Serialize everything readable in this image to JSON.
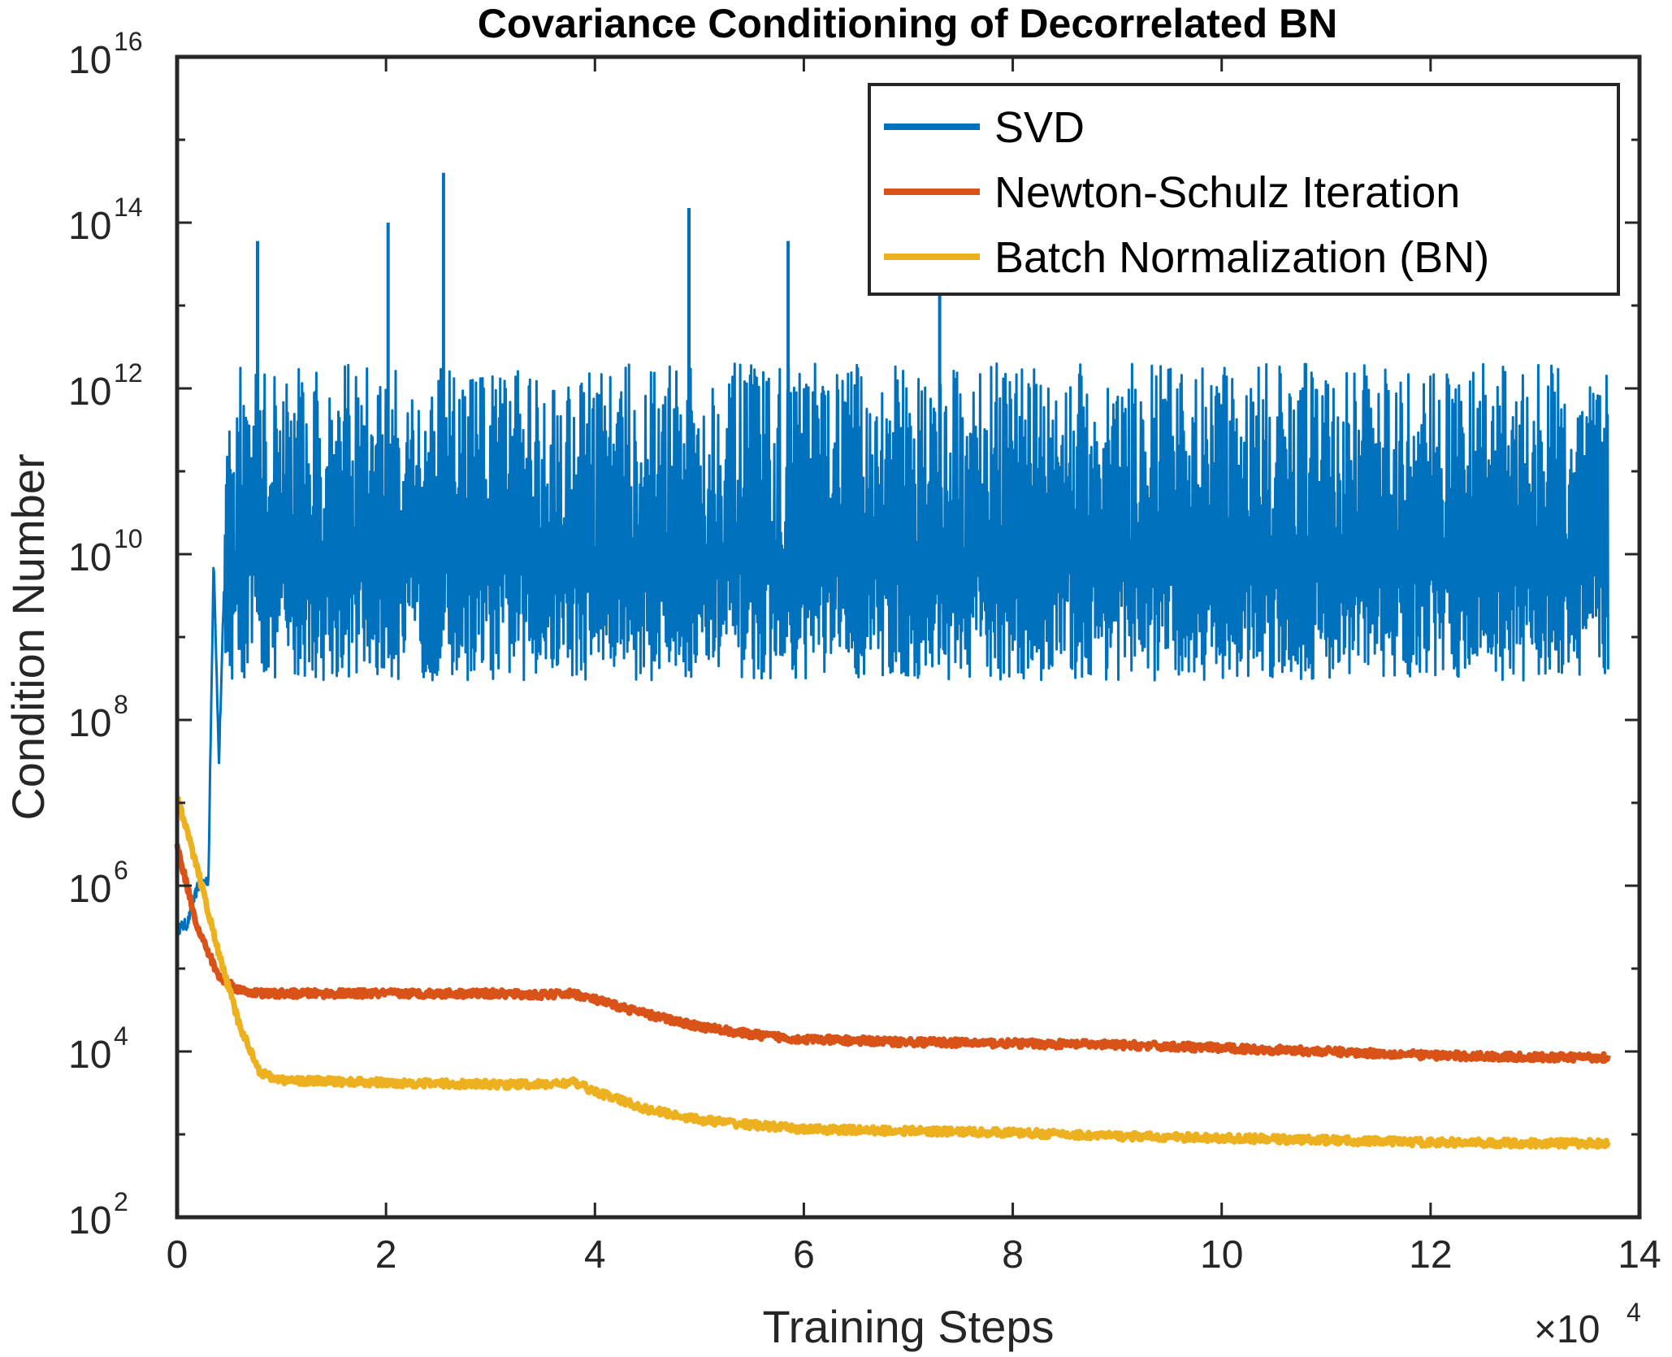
{
  "chart_data": {
    "type": "line",
    "title": "Covariance Conditioning of Decorrelated BN",
    "xlabel": "Training Steps",
    "ylabel": "Condition Number",
    "x_multiplier": "×10",
    "x_multiplier_exp": "4",
    "xlim": [
      0,
      14
    ],
    "ylim": [
      100,
      10000000000000000
    ],
    "yscale": "log",
    "xticks": [
      0,
      2,
      4,
      6,
      8,
      10,
      12,
      14
    ],
    "yticks": [
      {
        "base": "10",
        "exp": "2",
        "value": 100
      },
      {
        "base": "10",
        "exp": "4",
        "value": 10000
      },
      {
        "base": "10",
        "exp": "6",
        "value": 1000000
      },
      {
        "base": "10",
        "exp": "8",
        "value": 100000000
      },
      {
        "base": "10",
        "exp": "10",
        "value": 10000000000
      },
      {
        "base": "10",
        "exp": "12",
        "value": 1000000000000
      },
      {
        "base": "10",
        "exp": "14",
        "value": 100000000000000
      },
      {
        "base": "10",
        "exp": "16",
        "value": 10000000000000000
      }
    ],
    "grid": false,
    "legend_position": "top-right",
    "series": [
      {
        "name": "SVD",
        "color": "#0072BD",
        "x": [
          0,
          0.1,
          0.2,
          0.3,
          0.35,
          0.4,
          0.45,
          0.5,
          0.6,
          0.75,
          1,
          2,
          2.5,
          3,
          4,
          4.9,
          5,
          6,
          7,
          7.5,
          8,
          9,
          10,
          11,
          12,
          13,
          13.7
        ],
        "y": [
          300000,
          350000,
          1000000,
          1200000,
          10000000000,
          30000000,
          4000000000,
          10000000000,
          5000000000,
          20000000000,
          10000000000,
          10000000000,
          10000000000,
          10000000000,
          10000000000,
          10000000000,
          10000000000,
          10000000000,
          10000000000,
          10000000000,
          10000000000,
          10000000000,
          10000000000,
          10000000000,
          10000000000,
          10000000000,
          10000000000
        ],
        "band_low": 300000000,
        "band_high": 2000000000000,
        "spikes": [
          {
            "x": 0.77,
            "y": 60000000000000
          },
          {
            "x": 2.02,
            "y": 100000000000000
          },
          {
            "x": 2.55,
            "y": 400000000000000
          },
          {
            "x": 4.9,
            "y": 150000000000000
          },
          {
            "x": 5.85,
            "y": 60000000000000
          },
          {
            "x": 7.3,
            "y": 30000000000000
          }
        ]
      },
      {
        "name": "Newton-Schulz Iteration",
        "color": "#D95319",
        "x": [
          0,
          0.2,
          0.4,
          0.6,
          0.8,
          1,
          2,
          3,
          3.5,
          3.8,
          4,
          4.5,
          5,
          5.5,
          6,
          7,
          8,
          9,
          10,
          11,
          12,
          13,
          13.7
        ],
        "y": [
          3000000,
          300000,
          80000,
          55000,
          50000,
          50000,
          50000,
          50000,
          48000,
          50000,
          42000,
          28000,
          20000,
          16000,
          14000,
          13000,
          12500,
          12000,
          11000,
          10000,
          9000,
          8500,
          8500
        ]
      },
      {
        "name": "Batch Normalization (BN)",
        "color": "#EDB120",
        "x": [
          0,
          0.2,
          0.4,
          0.6,
          0.8,
          1,
          2,
          3,
          3.5,
          3.8,
          4,
          4.5,
          5,
          5.5,
          6,
          7,
          8,
          9,
          10,
          11,
          12,
          13,
          13.7
        ],
        "y": [
          12000000,
          1500000,
          150000,
          20000,
          5500,
          4500,
          4200,
          4000,
          4000,
          4200,
          3300,
          2000,
          1500,
          1300,
          1150,
          1100,
          1050,
          950,
          900,
          850,
          800,
          780,
          780
        ]
      }
    ]
  }
}
